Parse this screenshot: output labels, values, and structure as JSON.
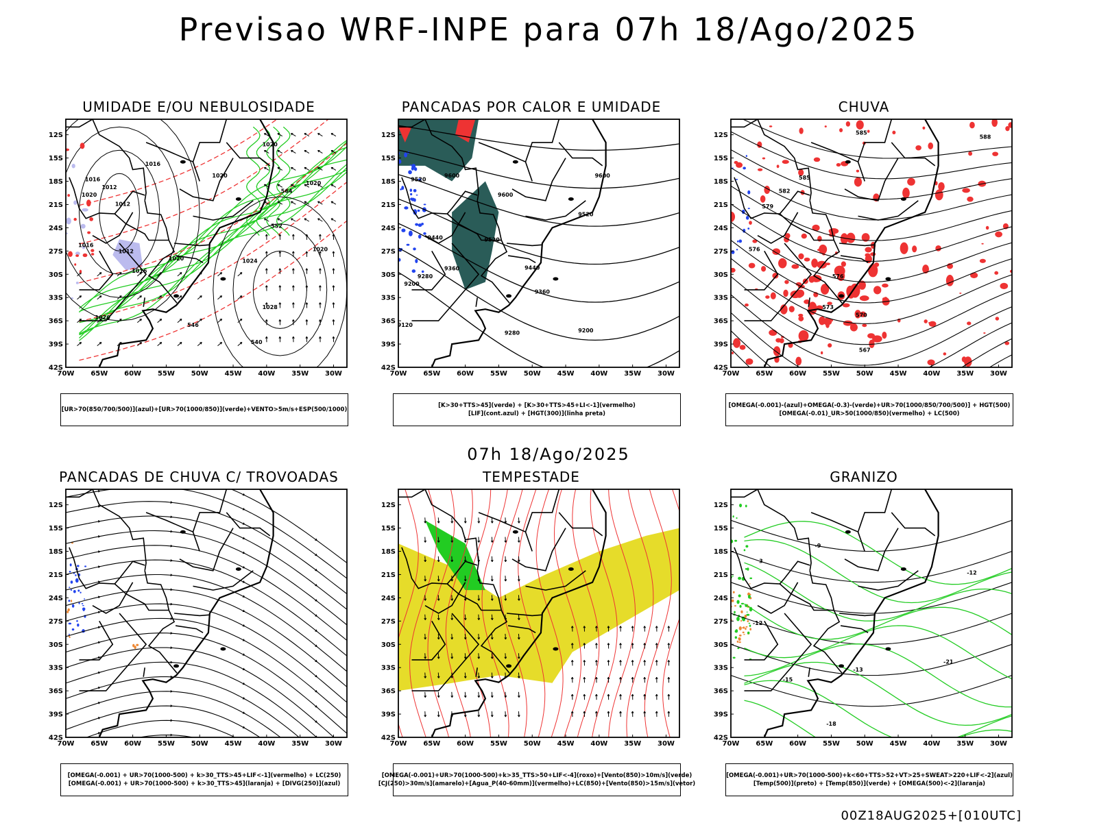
{
  "header": {
    "title": "Previsao WRF-INPE  para 07h 18/Ago/2025",
    "mid_title": "07h 18/Ago/2025",
    "footer": "00Z18AUG2025+[010UTC]"
  },
  "axes": {
    "lat_labels": [
      "12S",
      "15S",
      "18S",
      "21S",
      "24S",
      "27S",
      "30S",
      "33S",
      "36S",
      "39S",
      "42S"
    ],
    "lon_labels": [
      "70W",
      "65W",
      "60W",
      "55W",
      "50W",
      "45W",
      "40W",
      "35W",
      "30W"
    ]
  },
  "colors": {
    "map_boundary": "#000000",
    "green": "#22cc22",
    "red": "#ee3333",
    "blue": "#2244ee",
    "lavender": "#bbbbee",
    "teal": "#2a5c58",
    "yellow": "#e6dc2a",
    "orange": "#ee8833"
  },
  "panels": [
    {
      "title": "UMIDADE E/OU NEBULOSIDADE",
      "legend": [
        "[UR>70(850/700/500)](azul)+[UR>70(1000/850)](verde)+VENTO>5m/s+ESP(500/1000)"
      ],
      "labels": [
        {
          "text": "1020",
          "lon": -39.5,
          "lat": -13.5
        },
        {
          "text": "1016",
          "lon": -57.0,
          "lat": -16.0
        },
        {
          "text": "1016",
          "lon": -66.0,
          "lat": -18.0
        },
        {
          "text": "1012",
          "lon": -63.5,
          "lat": -19.0
        },
        {
          "text": "1020",
          "lon": -66.5,
          "lat": -20.0
        },
        {
          "text": "1012",
          "lon": -61.5,
          "lat": -21.2
        },
        {
          "text": "1020",
          "lon": -47.0,
          "lat": -17.5
        },
        {
          "text": "1020",
          "lon": -33.0,
          "lat": -18.5
        },
        {
          "text": "1012",
          "lon": -61.0,
          "lat": -27.3
        },
        {
          "text": "1016",
          "lon": -59.0,
          "lat": -29.8
        },
        {
          "text": "1020",
          "lon": -53.5,
          "lat": -28.2
        },
        {
          "text": "1024",
          "lon": -42.5,
          "lat": -28.5
        },
        {
          "text": "1020",
          "lon": -32.0,
          "lat": -27.0
        },
        {
          "text": "1028",
          "lon": -39.5,
          "lat": -34.5
        },
        {
          "text": "1020",
          "lon": -64.5,
          "lat": -35.8
        },
        {
          "text": "1016",
          "lon": -67.0,
          "lat": -26.5
        },
        {
          "text": "564",
          "lon": -37.0,
          "lat": -19.5
        },
        {
          "text": "552",
          "lon": -38.5,
          "lat": -24.0
        },
        {
          "text": "540",
          "lon": -41.5,
          "lat": -39.0
        },
        {
          "text": "546",
          "lon": -51.0,
          "lat": -36.8
        }
      ]
    },
    {
      "title": "PANCADAS POR CALOR E UMIDADE",
      "legend": [
        "[K>30+TTS>45](verde) + [K>30+TTS>45+LI<-1](vermelho)",
        "[LIF](cont.azul) + [HGT(300)](linha preta)"
      ],
      "labels": [
        {
          "text": "9600",
          "lon": -62.0,
          "lat": -17.5
        },
        {
          "text": "9520",
          "lon": -67.0,
          "lat": -18.0
        },
        {
          "text": "9600",
          "lon": -54.0,
          "lat": -20.0
        },
        {
          "text": "9600",
          "lon": -39.5,
          "lat": -17.5
        },
        {
          "text": "9520",
          "lon": -42.0,
          "lat": -22.5
        },
        {
          "text": "9520",
          "lon": -56.0,
          "lat": -25.8
        },
        {
          "text": "9440",
          "lon": -64.5,
          "lat": -25.5
        },
        {
          "text": "9440",
          "lon": -50.0,
          "lat": -29.4
        },
        {
          "text": "9360",
          "lon": -62.0,
          "lat": -29.5
        },
        {
          "text": "9360",
          "lon": -48.5,
          "lat": -32.5
        },
        {
          "text": "9280",
          "lon": -66.0,
          "lat": -30.5
        },
        {
          "text": "9200",
          "lon": -68.0,
          "lat": -31.5
        },
        {
          "text": "9280",
          "lon": -53.0,
          "lat": -37.8
        },
        {
          "text": "9200",
          "lon": -42.0,
          "lat": -37.5
        },
        {
          "text": "9120",
          "lon": -69.0,
          "lat": -36.8
        }
      ]
    },
    {
      "title": "CHUVA",
      "legend": [
        "[OMEGA(-0.001)-(azul)+OMEGA(-0.3)-(verde)+UR>70(1000/850/700/500)] + HGT(500)",
        "[OMEGA(-0.01)_UR>50(1000/850)(vermelho) + LC(500)"
      ],
      "labels": [
        {
          "text": "585",
          "lon": -50.5,
          "lat": -12.0
        },
        {
          "text": "588",
          "lon": -32.0,
          "lat": -12.5
        },
        {
          "text": "585",
          "lon": -59.0,
          "lat": -17.8
        },
        {
          "text": "582",
          "lon": -62.0,
          "lat": -19.5
        },
        {
          "text": "579",
          "lon": -64.5,
          "lat": -21.5
        },
        {
          "text": "576",
          "lon": -66.5,
          "lat": -27.0
        },
        {
          "text": "576",
          "lon": -54.0,
          "lat": -30.5
        },
        {
          "text": "573",
          "lon": -55.5,
          "lat": -34.5
        },
        {
          "text": "570",
          "lon": -50.5,
          "lat": -35.5
        },
        {
          "text": "567",
          "lon": -50.0,
          "lat": -40.0
        }
      ]
    },
    {
      "title": "PANCADAS DE CHUVA C/ TROVOADAS",
      "legend": [
        "[OMEGA(-0.001) + UR>70(1000-500) + k>30_TTS>45+LIF<-1](vermelho) + LC(250)",
        "[OMEGA(-0.001) + UR>70(1000-500) + k>30_TTS>45](laranja) + [DIVG(250)](azul)"
      ],
      "labels": []
    },
    {
      "title": "TEMPESTADE",
      "legend": [
        "[OMEGA(-0.001)+UR>70(1000-500)+k>35_TTS>50+LIF<-4](roxo)+[Vento(850)>10m/s](verde)",
        "[CJ(250)>30m/s](amarelo)+[Agua_P(40-60mm)](vermelho)+LC(850)+[Vento(850)>15m/s](vetor)"
      ],
      "labels": []
    },
    {
      "title": "GRANIZO",
      "legend": [
        "[OMEGA(-0.001)+UR>70(1000-500)+k<60+TTS>52+VT>25+SWEAT>220+LIF<-2](azul)",
        "[Temp(500)](preto) + [Temp(850)](verde) + [OMEGA(500)<-2](laranja)"
      ],
      "labels": [
        {
          "text": "-9",
          "lon": -57.0,
          "lat": -17.5
        },
        {
          "text": "3",
          "lon": -65.5,
          "lat": -19.5
        },
        {
          "text": "-12",
          "lon": -34.0,
          "lat": -21.0
        },
        {
          "text": "-12",
          "lon": -66.0,
          "lat": -27.5
        },
        {
          "text": "-13",
          "lon": -51.0,
          "lat": -33.5
        },
        {
          "text": "-15",
          "lon": -61.5,
          "lat": -34.8
        },
        {
          "text": "-18",
          "lon": -55.0,
          "lat": -40.5
        },
        {
          "text": "-21",
          "lon": -37.5,
          "lat": -32.5
        }
      ]
    }
  ]
}
